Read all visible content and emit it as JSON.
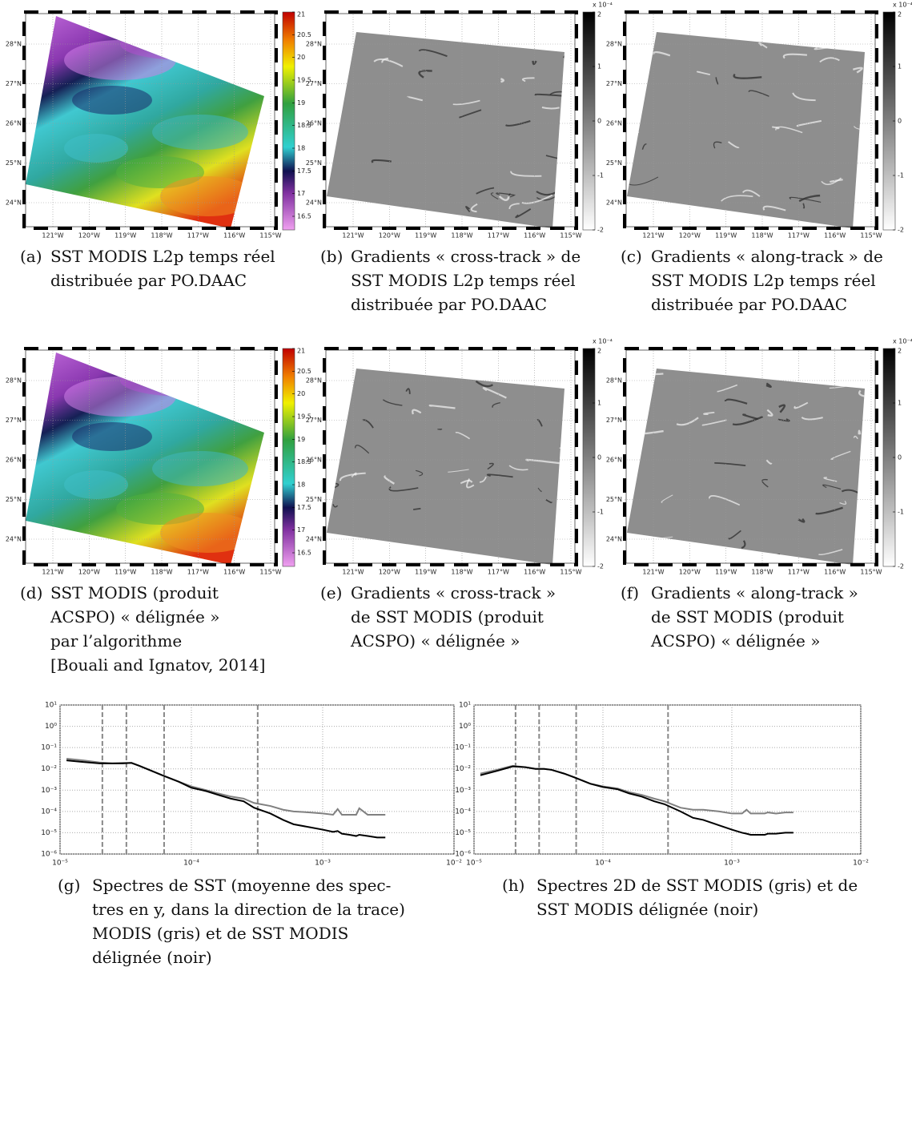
{
  "maps": {
    "lon_ticks": [
      {
        "value": -121,
        "label": "121°W"
      },
      {
        "value": -120,
        "label": "120°W"
      },
      {
        "value": -119,
        "label": "119°W"
      },
      {
        "value": -118,
        "label": "118°W"
      },
      {
        "value": -117,
        "label": "117°W"
      },
      {
        "value": -116,
        "label": "116°W"
      },
      {
        "value": -115,
        "label": "115°W"
      }
    ],
    "lat_ticks": [
      {
        "value": 28,
        "label": "28°N"
      },
      {
        "value": 27,
        "label": "27°N"
      },
      {
        "value": 26,
        "label": "26°N"
      },
      {
        "value": 25,
        "label": "25°N"
      },
      {
        "value": 24,
        "label": "24°N"
      }
    ],
    "sst_colorbar": {
      "lim": [
        16.2,
        21
      ],
      "ticks": [
        21,
        20.5,
        20,
        19.5,
        19,
        18.5,
        18,
        17.5,
        17,
        16.5
      ]
    },
    "gradient_colorbar": {
      "lim": [
        -2,
        2
      ],
      "ticks": [
        2,
        1,
        0,
        -1,
        -2
      ],
      "scale_label": "x 10⁻⁴"
    },
    "panels": [
      {
        "label": "(a)",
        "kind": "sst",
        "caption": [
          "SST MODIS L2p temps réel",
          "distribuée par PO.DAAC"
        ]
      },
      {
        "label": "(b)",
        "kind": "gradient",
        "caption": [
          "Gradients « cross-track » de",
          "SST MODIS L2p temps réel",
          "distribuée par PO.DAAC"
        ]
      },
      {
        "label": "(c)",
        "kind": "gradient",
        "caption": [
          "Gradients « along-track » de",
          "SST MODIS L2p temps réel",
          "distribuée par PO.DAAC"
        ]
      },
      {
        "label": "(d)",
        "kind": "sst",
        "caption": [
          "SST MODIS (produit",
          "ACSPO) « délignée »",
          "par l’algorithme",
          "[Bouali and Ignatov, 2014]"
        ]
      },
      {
        "label": "(e)",
        "kind": "gradient",
        "caption": [
          "Gradients « cross-track »",
          "de SST MODIS (produit",
          "ACSPO) « délignée »"
        ]
      },
      {
        "label": "(f)",
        "kind": "gradient",
        "caption": [
          "Gradients « along-track »",
          "de SST MODIS (produit",
          "ACSPO) « délignée »"
        ]
      }
    ]
  },
  "chart_data": [
    {
      "type": "line",
      "label": "(g)",
      "caption": [
        "Spectres de SST (moyenne des spec-",
        "tres en y, dans la direction de la trace)",
        "MODIS (gris) et de SST MODIS",
        "délignée (noir)"
      ],
      "xlog": true,
      "ylog": true,
      "grid": true,
      "xlim": [
        1e-05,
        0.01
      ],
      "ylim": [
        1e-06,
        10
      ],
      "xticks": [
        {
          "value": 1e-05,
          "label": "10⁻⁵"
        },
        {
          "value": 0.0001,
          "label": "10⁻⁴"
        },
        {
          "value": 0.001,
          "label": "10⁻³"
        },
        {
          "value": 0.01,
          "label": "10⁻²"
        }
      ],
      "yticks": [
        {
          "value": 1e-06,
          "label": "10⁻⁶"
        },
        {
          "value": 1e-05,
          "label": "10⁻⁵"
        },
        {
          "value": 0.0001,
          "label": "10⁻⁴"
        },
        {
          "value": 0.001,
          "label": "10⁻³"
        },
        {
          "value": 0.01,
          "label": "10⁻²"
        },
        {
          "value": 0.1,
          "label": "10⁻¹"
        },
        {
          "value": 1,
          "label": "10⁰"
        },
        {
          "value": 10,
          "label": "10¹"
        }
      ],
      "vlines": [
        2.1e-05,
        3.2e-05,
        6.2e-05,
        0.00032
      ],
      "x": [
        1.12e-05,
        1.5e-05,
        2e-05,
        2.5e-05,
        3e-05,
        3.5e-05,
        4e-05,
        5e-05,
        6e-05,
        8e-05,
        0.0001,
        0.00013,
        0.00016,
        0.0002,
        0.00025,
        0.0003,
        0.0004,
        0.0005,
        0.0006,
        0.0008,
        0.001,
        0.0012,
        0.0013,
        0.0014,
        0.0016,
        0.0018,
        0.0019,
        0.0022,
        0.0026,
        0.003
      ],
      "series": [
        {
          "color": "#808080",
          "values": [
            0.03,
            0.025,
            0.02,
            0.018,
            0.019,
            0.019,
            0.014,
            0.008,
            0.005,
            0.0025,
            0.0015,
            0.001,
            0.0007,
            0.0005,
            0.0004,
            0.00025,
            0.00018,
            0.00012,
            0.0001,
            9e-05,
            8e-05,
            7e-05,
            0.00013,
            7e-05,
            7e-05,
            7e-05,
            0.00014,
            7e-05,
            7e-05,
            7e-05
          ]
        },
        {
          "color": "#000000",
          "values": [
            0.025,
            0.021,
            0.018,
            0.018,
            0.018,
            0.019,
            0.014,
            0.008,
            0.005,
            0.0025,
            0.0013,
            0.0009,
            0.0006,
            0.0004,
            0.0003,
            0.00015,
            8e-05,
            4e-05,
            2.5e-05,
            1.8e-05,
            1.4e-05,
            1.1e-05,
            1.2e-05,
            9e-06,
            8e-06,
            7e-06,
            8e-06,
            7e-06,
            6e-06,
            6e-06
          ]
        }
      ]
    },
    {
      "type": "line",
      "label": "(h)",
      "caption": [
        "Spectres 2D de SST MODIS (gris) et de",
        "SST MODIS délignée (noir)"
      ],
      "xlog": true,
      "ylog": true,
      "grid": true,
      "xlim": [
        1e-05,
        0.01
      ],
      "ylim": [
        1e-06,
        10
      ],
      "xticks": [
        {
          "value": 1e-05,
          "label": "10⁻⁵"
        },
        {
          "value": 0.0001,
          "label": "10⁻⁴"
        },
        {
          "value": 0.001,
          "label": "10⁻³"
        },
        {
          "value": 0.01,
          "label": "10⁻²"
        }
      ],
      "yticks": [
        {
          "value": 1e-06,
          "label": "10⁻⁶"
        },
        {
          "value": 1e-05,
          "label": "10⁻⁵"
        },
        {
          "value": 0.0001,
          "label": "10⁻⁴"
        },
        {
          "value": 0.001,
          "label": "10⁻³"
        },
        {
          "value": 0.01,
          "label": "10⁻²"
        },
        {
          "value": 0.1,
          "label": "10⁻¹"
        },
        {
          "value": 1,
          "label": "10⁰"
        },
        {
          "value": 10,
          "label": "10¹"
        }
      ],
      "vlines": [
        2.1e-05,
        3.2e-05,
        6.2e-05,
        0.00032
      ],
      "x": [
        1.12e-05,
        1.5e-05,
        2e-05,
        2.5e-05,
        3e-05,
        3.5e-05,
        4e-05,
        5e-05,
        6e-05,
        8e-05,
        0.0001,
        0.00013,
        0.00016,
        0.0002,
        0.00025,
        0.0003,
        0.0004,
        0.0005,
        0.0006,
        0.0008,
        0.001,
        0.0012,
        0.0013,
        0.0014,
        0.0016,
        0.0018,
        0.0019,
        0.0022,
        0.0026,
        0.003
      ],
      "series": [
        {
          "color": "#808080",
          "values": [
            0.006,
            0.009,
            0.014,
            0.012,
            0.01,
            0.01,
            0.009,
            0.006,
            0.004,
            0.002,
            0.0015,
            0.0012,
            0.0008,
            0.0006,
            0.0004,
            0.0003,
            0.00015,
            0.00012,
            0.00012,
            0.0001,
            8e-05,
            8e-05,
            0.00012,
            8e-05,
            8e-05,
            8e-05,
            9e-05,
            8e-05,
            9e-05,
            9e-05
          ]
        },
        {
          "color": "#000000",
          "values": [
            0.005,
            0.008,
            0.013,
            0.012,
            0.01,
            0.01,
            0.009,
            0.006,
            0.004,
            0.002,
            0.0014,
            0.0011,
            0.0007,
            0.0005,
            0.0003,
            0.00022,
            0.0001,
            5e-05,
            4e-05,
            2.2e-05,
            1.4e-05,
            1e-05,
            9e-06,
            8e-06,
            8e-06,
            8e-06,
            9e-06,
            9e-06,
            1e-05,
            1e-05
          ]
        }
      ]
    }
  ]
}
